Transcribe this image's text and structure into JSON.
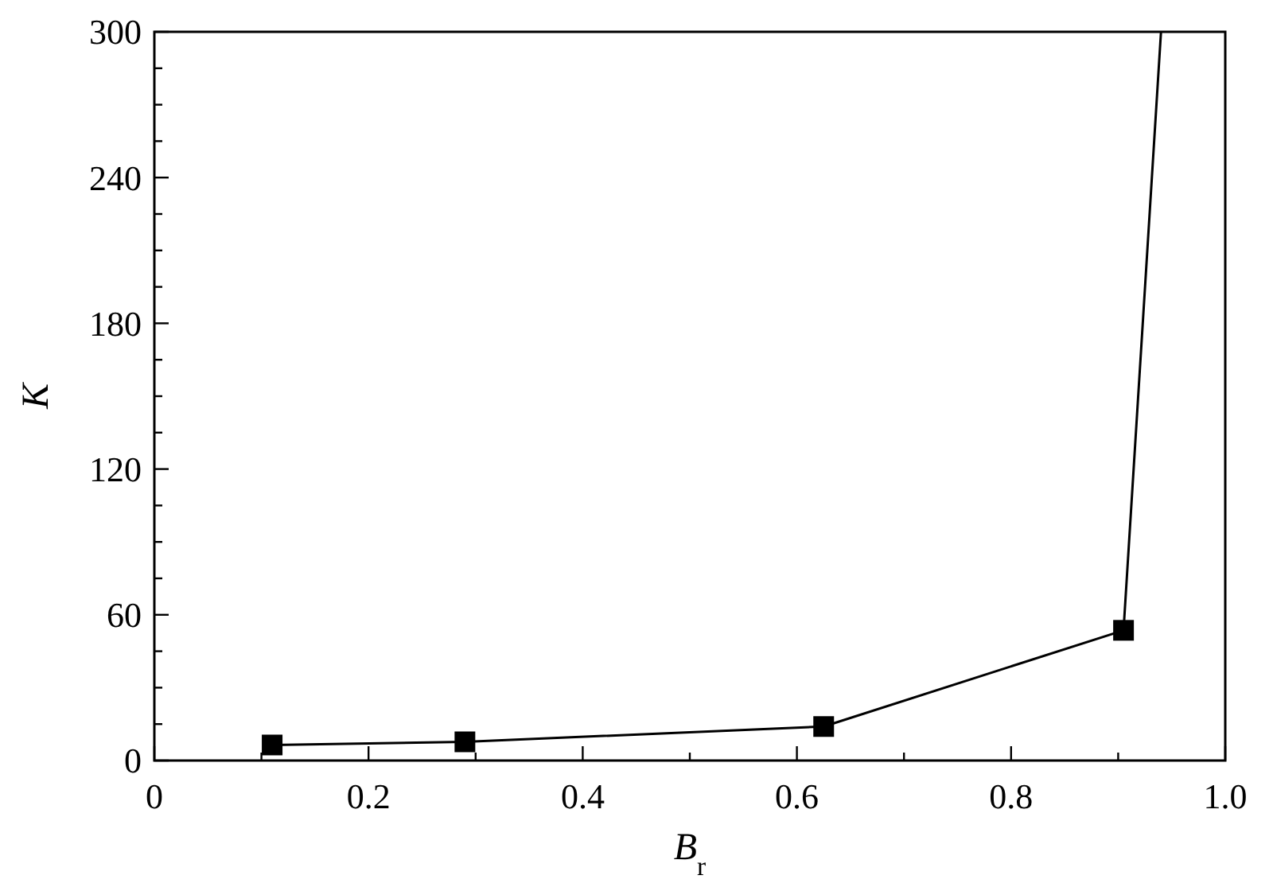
{
  "chart_data": {
    "type": "line",
    "xlabel": "B$_{r}$",
    "ylabel": "K",
    "xlim": [
      0,
      1
    ],
    "ylim": [
      0,
      300
    ],
    "xticks": [
      0,
      {
        "value": 0.1,
        "label": null
      },
      0.2,
      {
        "value": 0.3,
        "label": null
      },
      0.4,
      {
        "value": 0.5,
        "label": null
      },
      0.6,
      {
        "value": 0.7,
        "label": null
      },
      0.8,
      {
        "value": 0.9,
        "label": null
      },
      {
        "value": 1,
        "label": "1.0"
      }
    ],
    "yticks": [
      0,
      {
        "value": 15,
        "label": null
      },
      {
        "value": 30,
        "label": null
      },
      {
        "value": 45,
        "label": null
      },
      60,
      {
        "value": 75,
        "label": null
      },
      {
        "value": 90,
        "label": null
      },
      {
        "value": 105,
        "label": null
      },
      120,
      {
        "value": 135,
        "label": null
      },
      {
        "value": 150,
        "label": null
      },
      {
        "value": 165,
        "label": null
      },
      180,
      {
        "value": 195,
        "label": null
      },
      {
        "value": 210,
        "label": null
      },
      {
        "value": 225,
        "label": null
      },
      240,
      {
        "value": 255,
        "label": null
      },
      {
        "value": 270,
        "label": null
      },
      {
        "value": 285,
        "label": null
      },
      300
    ],
    "grid": false,
    "series": [
      {
        "color": "#000000",
        "marker": "none",
        "x": [
          0.11,
          0.29,
          0.625,
          0.905,
          0.94
        ],
        "values": [
          6.4,
          7.7,
          14,
          53.6,
          300
        ]
      },
      {
        "type": "scatter",
        "color": "#000000",
        "marker": "square",
        "x": [
          0.11,
          0.29,
          0.625,
          0.905
        ],
        "values": [
          6.4,
          7.7,
          14,
          53.6
        ]
      }
    ]
  }
}
